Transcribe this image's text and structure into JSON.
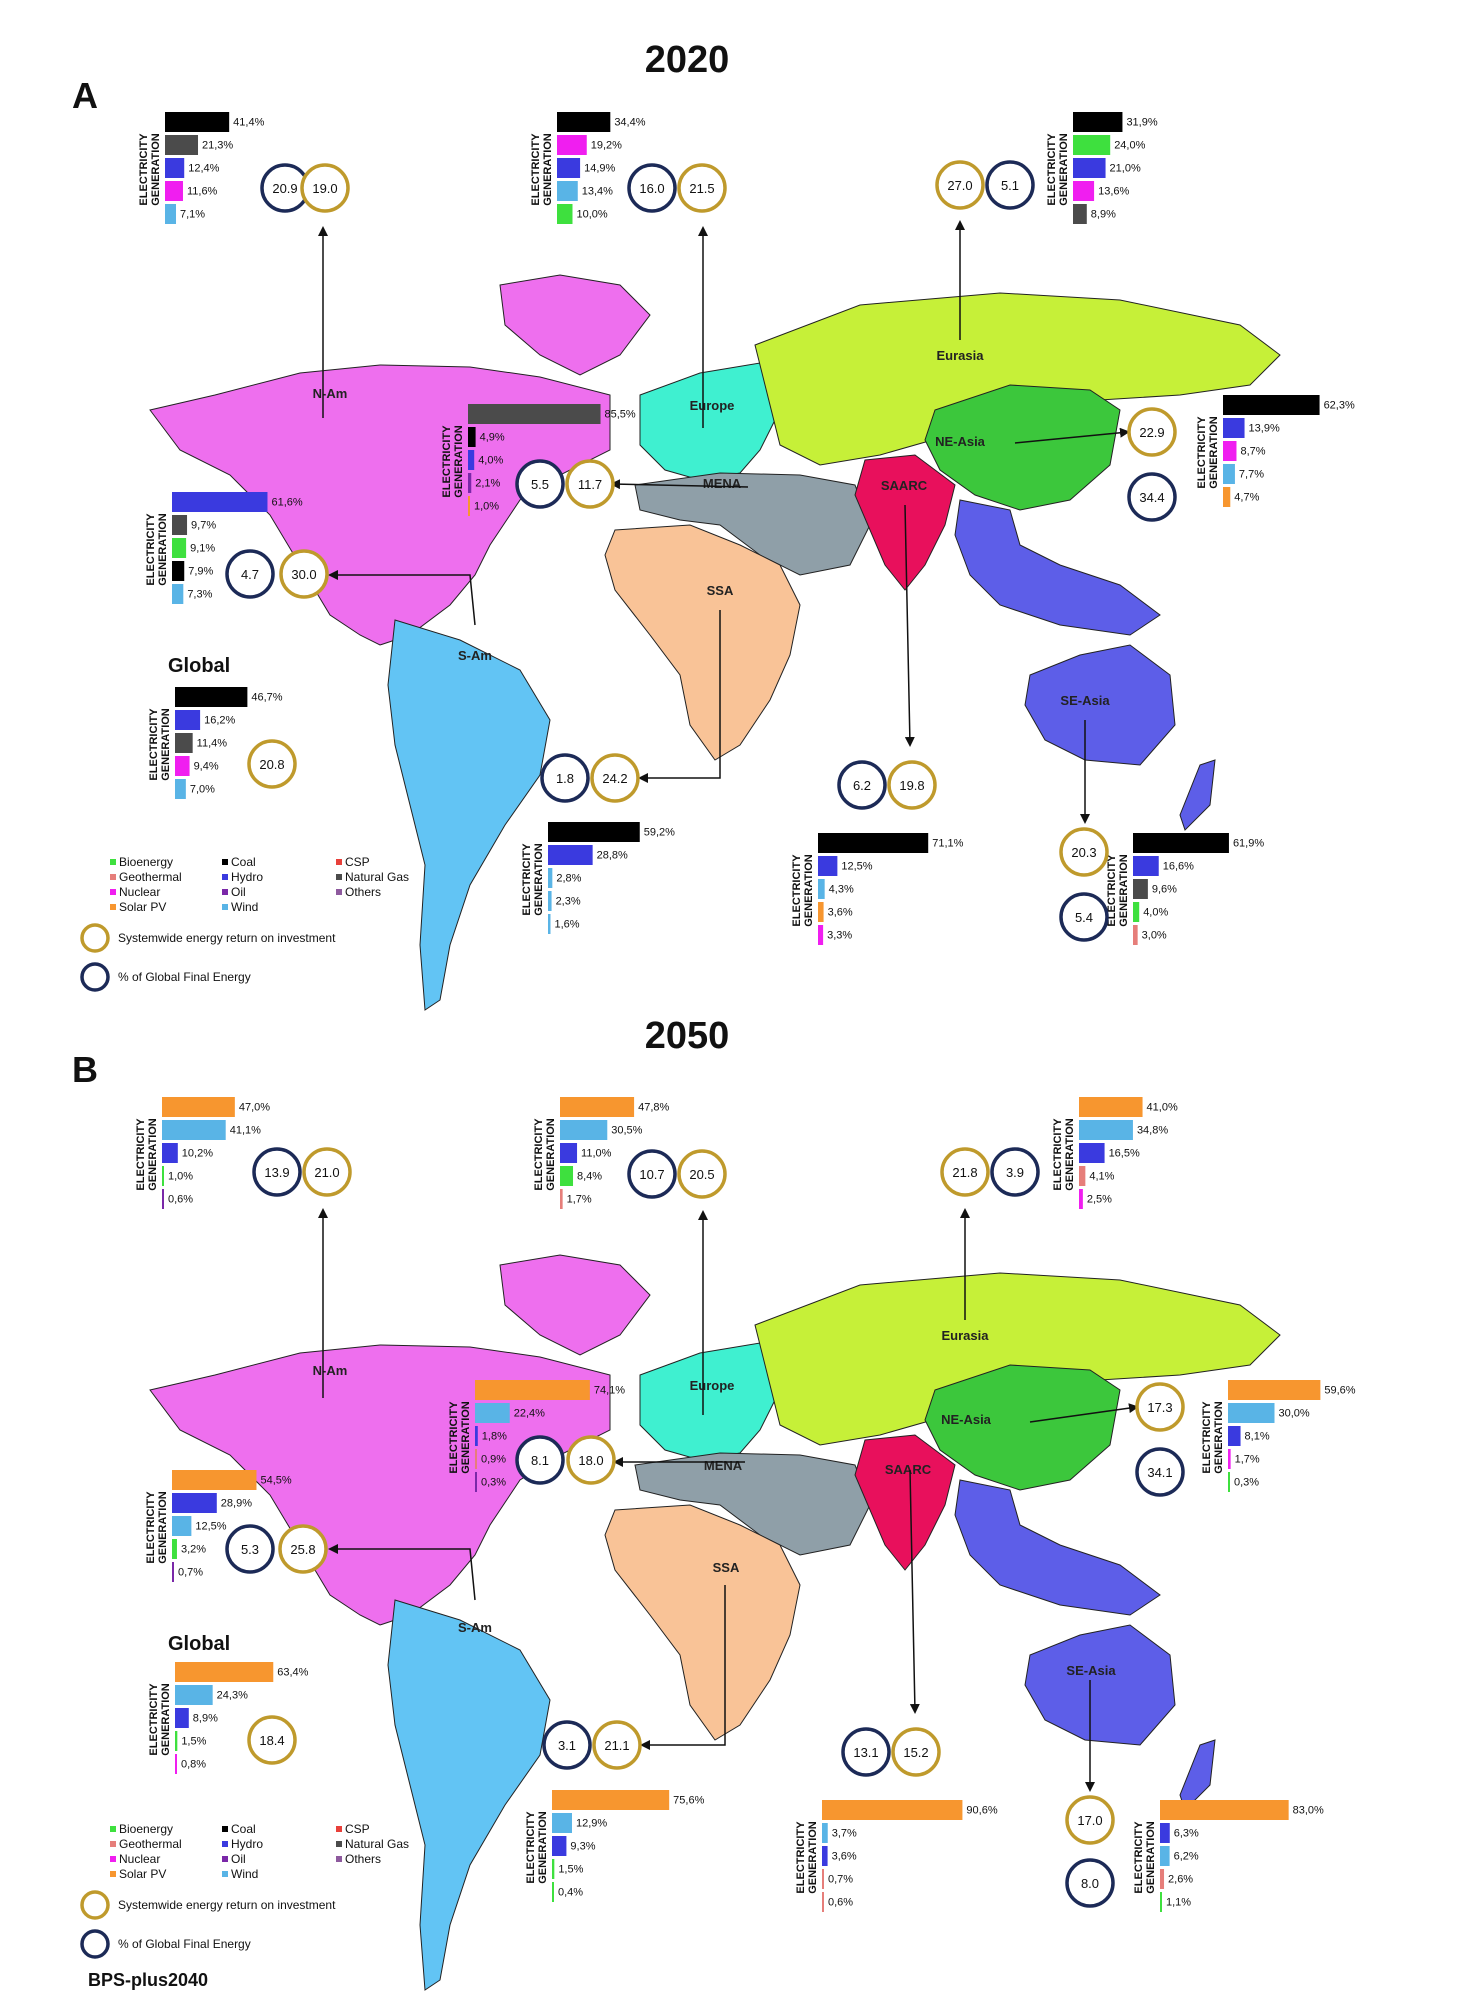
{
  "panels": [
    {
      "key": "A",
      "letter": "A",
      "year": "2020",
      "regions": [
        {
          "name": "N-Am",
          "label": "N-Am",
          "eroi": "19.0",
          "share": "20.9",
          "bars": [
            {
              "source": "Coal",
              "label": "41,4%",
              "value": 41.4
            },
            {
              "source": "Natural Gas",
              "label": "21,3%",
              "value": 21.3
            },
            {
              "source": "Hydro",
              "label": "12,4%",
              "value": 12.4
            },
            {
              "source": "Nuclear",
              "label": "11,6%",
              "value": 11.6
            },
            {
              "source": "Wind",
              "label": "7,1%",
              "value": 7.1
            }
          ]
        },
        {
          "name": "Europe",
          "label": "Europe",
          "eroi": "21.5",
          "share": "16.0",
          "bars": [
            {
              "source": "Coal",
              "label": "34,4%",
              "value": 34.4
            },
            {
              "source": "Nuclear",
              "label": "19,2%",
              "value": 19.2
            },
            {
              "source": "Hydro",
              "label": "14,9%",
              "value": 14.9
            },
            {
              "source": "Wind",
              "label": "13,4%",
              "value": 13.4
            },
            {
              "source": "Bioenergy",
              "label": "10,0%",
              "value": 10.0
            }
          ]
        },
        {
          "name": "Eurasia",
          "label": "Eurasia",
          "eroi": "27.0",
          "share": "5.1",
          "bars": [
            {
              "source": "Coal",
              "label": "31,9%",
              "value": 31.9
            },
            {
              "source": "Bioenergy",
              "label": "24,0%",
              "value": 24.0
            },
            {
              "source": "Hydro",
              "label": "21,0%",
              "value": 21.0
            },
            {
              "source": "Nuclear",
              "label": "13,6%",
              "value": 13.6
            },
            {
              "source": "Natural Gas",
              "label": "8,9%",
              "value": 8.9
            }
          ]
        },
        {
          "name": "NE-Asia",
          "label": "NE-Asia",
          "eroi": "22.9",
          "share": "34.4",
          "bars": [
            {
              "source": "Coal",
              "label": "62,3%",
              "value": 62.3
            },
            {
              "source": "Hydro",
              "label": "13,9%",
              "value": 13.9
            },
            {
              "source": "Nuclear",
              "label": "8,7%",
              "value": 8.7
            },
            {
              "source": "Wind",
              "label": "7,7%",
              "value": 7.7
            },
            {
              "source": "Solar PV",
              "label": "4,7%",
              "value": 4.7
            }
          ]
        },
        {
          "name": "MENA",
          "label": "MENA",
          "eroi": "11.7",
          "share": "5.5",
          "bars": [
            {
              "source": "Natural Gas",
              "label": "85,5%",
              "value": 85.5
            },
            {
              "source": "Coal",
              "label": "4,9%",
              "value": 4.9
            },
            {
              "source": "Hydro",
              "label": "4,0%",
              "value": 4.0
            },
            {
              "source": "Oil",
              "label": "2,1%",
              "value": 2.1
            },
            {
              "source": "Solar PV",
              "label": "1,0%",
              "value": 1.0
            }
          ]
        },
        {
          "name": "S-Am",
          "label": "S-Am",
          "eroi": "30.0",
          "share": "4.7",
          "bars": [
            {
              "source": "Hydro",
              "label": "61,6%",
              "value": 61.6
            },
            {
              "source": "Natural Gas",
              "label": "9,7%",
              "value": 9.7
            },
            {
              "source": "Bioenergy",
              "label": "9,1%",
              "value": 9.1
            },
            {
              "source": "Coal",
              "label": "7,9%",
              "value": 7.9
            },
            {
              "source": "Wind",
              "label": "7,3%",
              "value": 7.3
            }
          ]
        },
        {
          "name": "Global",
          "label": "Global",
          "eroi": "20.8",
          "share": "",
          "bars": [
            {
              "source": "Coal",
              "label": "46,7%",
              "value": 46.7
            },
            {
              "source": "Hydro",
              "label": "16,2%",
              "value": 16.2
            },
            {
              "source": "Natural Gas",
              "label": "11,4%",
              "value": 11.4
            },
            {
              "source": "Nuclear",
              "label": "9,4%",
              "value": 9.4
            },
            {
              "source": "Wind",
              "label": "7,0%",
              "value": 7.0
            }
          ]
        },
        {
          "name": "SSA",
          "label": "SSA",
          "eroi": "24.2",
          "share": "1.8",
          "bars": [
            {
              "source": "Coal",
              "label": "59,2%",
              "value": 59.2
            },
            {
              "source": "Hydro",
              "label": "28,8%",
              "value": 28.8
            },
            {
              "source": "Wind",
              "label": "2,8%",
              "value": 2.8
            },
            {
              "source": "Wind",
              "label": "2,3%",
              "value": 2.3
            },
            {
              "source": "Wind",
              "label": "1,6%",
              "value": 1.6
            }
          ]
        },
        {
          "name": "SAARC",
          "label": "SAARC",
          "eroi": "19.8",
          "share": "6.2",
          "bars": [
            {
              "source": "Coal",
              "label": "71,1%",
              "value": 71.1
            },
            {
              "source": "Hydro",
              "label": "12,5%",
              "value": 12.5
            },
            {
              "source": "Wind",
              "label": "4,3%",
              "value": 4.3
            },
            {
              "source": "Solar PV",
              "label": "3,6%",
              "value": 3.6
            },
            {
              "source": "Nuclear",
              "label": "3,3%",
              "value": 3.3
            }
          ]
        },
        {
          "name": "SE-Asia",
          "label": "SE-Asia",
          "eroi": "20.3",
          "share": "5.4",
          "bars": [
            {
              "source": "Coal",
              "label": "61,9%",
              "value": 61.9
            },
            {
              "source": "Hydro",
              "label": "16,6%",
              "value": 16.6
            },
            {
              "source": "Natural Gas",
              "label": "9,6%",
              "value": 9.6
            },
            {
              "source": "Bioenergy",
              "label": "4,0%",
              "value": 4.0
            },
            {
              "source": "Geothermal",
              "label": "3,0%",
              "value": 3.0
            }
          ]
        }
      ]
    },
    {
      "key": "B",
      "letter": "B",
      "year": "2050",
      "regions": [
        {
          "name": "N-Am",
          "label": "N-Am",
          "eroi": "21.0",
          "share": "13.9",
          "bars": [
            {
              "source": "Solar PV",
              "label": "47,0%",
              "value": 47.0
            },
            {
              "source": "Wind",
              "label": "41,1%",
              "value": 41.1
            },
            {
              "source": "Hydro",
              "label": "10,2%",
              "value": 10.2
            },
            {
              "source": "Bioenergy",
              "label": "1,0%",
              "value": 1.0
            },
            {
              "source": "Oil",
              "label": "0,6%",
              "value": 0.6
            }
          ]
        },
        {
          "name": "Europe",
          "label": "Europe",
          "eroi": "20.5",
          "share": "10.7",
          "bars": [
            {
              "source": "Solar PV",
              "label": "47,8%",
              "value": 47.8
            },
            {
              "source": "Wind",
              "label": "30,5%",
              "value": 30.5
            },
            {
              "source": "Hydro",
              "label": "11,0%",
              "value": 11.0
            },
            {
              "source": "Bioenergy",
              "label": "8,4%",
              "value": 8.4
            },
            {
              "source": "Geothermal",
              "label": "1,7%",
              "value": 1.7
            }
          ]
        },
        {
          "name": "Eurasia",
          "label": "Eurasia",
          "eroi": "21.8",
          "share": "3.9",
          "bars": [
            {
              "source": "Solar PV",
              "label": "41,0%",
              "value": 41.0
            },
            {
              "source": "Wind",
              "label": "34,8%",
              "value": 34.8
            },
            {
              "source": "Hydro",
              "label": "16,5%",
              "value": 16.5
            },
            {
              "source": "Geothermal",
              "label": "4,1%",
              "value": 4.1
            },
            {
              "source": "Nuclear",
              "label": "2,5%",
              "value": 2.5
            }
          ]
        },
        {
          "name": "NE-Asia",
          "label": "NE-Asia",
          "eroi": "17.3",
          "share": "34.1",
          "bars": [
            {
              "source": "Solar PV",
              "label": "59,6%",
              "value": 59.6
            },
            {
              "source": "Wind",
              "label": "30,0%",
              "value": 30.0
            },
            {
              "source": "Hydro",
              "label": "8,1%",
              "value": 8.1
            },
            {
              "source": "Nuclear",
              "label": "1,7%",
              "value": 1.7
            },
            {
              "source": "Bioenergy",
              "label": "0,3%",
              "value": 0.3
            }
          ]
        },
        {
          "name": "MENA",
          "label": "MENA",
          "eroi": "18.0",
          "share": "8.1",
          "bars": [
            {
              "source": "Solar PV",
              "label": "74,1%",
              "value": 74.1
            },
            {
              "source": "Wind",
              "label": "22,4%",
              "value": 22.4
            },
            {
              "source": "Hydro",
              "label": "1,8%",
              "value": 1.8
            },
            {
              "source": "Geothermal",
              "label": "0,9%",
              "value": 0.9
            },
            {
              "source": "Oil",
              "label": "0,3%",
              "value": 0.3
            }
          ]
        },
        {
          "name": "S-Am",
          "label": "S-Am",
          "eroi": "25.8",
          "share": "5.3",
          "bars": [
            {
              "source": "Solar PV",
              "label": "54,5%",
              "value": 54.5
            },
            {
              "source": "Hydro",
              "label": "28,9%",
              "value": 28.9
            },
            {
              "source": "Wind",
              "label": "12,5%",
              "value": 12.5
            },
            {
              "source": "Bioenergy",
              "label": "3,2%",
              "value": 3.2
            },
            {
              "source": "Oil",
              "label": "0,7%",
              "value": 0.7
            }
          ]
        },
        {
          "name": "Global",
          "label": "Global",
          "eroi": "18.4",
          "share": "",
          "bars": [
            {
              "source": "Solar PV",
              "label": "63,4%",
              "value": 63.4
            },
            {
              "source": "Wind",
              "label": "24,3%",
              "value": 24.3
            },
            {
              "source": "Hydro",
              "label": "8,9%",
              "value": 8.9
            },
            {
              "source": "Bioenergy",
              "label": "1,5%",
              "value": 1.5
            },
            {
              "source": "Nuclear",
              "label": "0,8%",
              "value": 0.8
            }
          ]
        },
        {
          "name": "SSA",
          "label": "SSA",
          "eroi": "21.1",
          "share": "3.1",
          "bars": [
            {
              "source": "Solar PV",
              "label": "75,6%",
              "value": 75.6
            },
            {
              "source": "Wind",
              "label": "12,9%",
              "value": 12.9
            },
            {
              "source": "Hydro",
              "label": "9,3%",
              "value": 9.3
            },
            {
              "source": "Bioenergy",
              "label": "1,5%",
              "value": 1.5
            },
            {
              "source": "Bioenergy",
              "label": "0,4%",
              "value": 0.4
            }
          ]
        },
        {
          "name": "SAARC",
          "label": "SAARC",
          "eroi": "15.2",
          "share": "13.1",
          "bars": [
            {
              "source": "Solar PV",
              "label": "90,6%",
              "value": 90.6
            },
            {
              "source": "Wind",
              "label": "3,7%",
              "value": 3.7
            },
            {
              "source": "Hydro",
              "label": "3,6%",
              "value": 3.6
            },
            {
              "source": "Geothermal",
              "label": "0,7%",
              "value": 0.7
            },
            {
              "source": "Geothermal",
              "label": "0,6%",
              "value": 0.6
            }
          ]
        },
        {
          "name": "SE-Asia",
          "label": "SE-Asia",
          "eroi": "17.0",
          "share": "8.0",
          "bars": [
            {
              "source": "Solar PV",
              "label": "83,0%",
              "value": 83.0
            },
            {
              "source": "Hydro",
              "label": "6,3%",
              "value": 6.3
            },
            {
              "source": "Wind",
              "label": "6,2%",
              "value": 6.2
            },
            {
              "source": "Geothermal",
              "label": "2,6%",
              "value": 2.6
            },
            {
              "source": "Bioenergy",
              "label": "1,1%",
              "value": 1.1
            }
          ]
        }
      ]
    }
  ],
  "axis_label_line1": "ELECTRICITY",
  "axis_label_line2": "GENERATION",
  "legend": {
    "sources": [
      {
        "name": "Bioenergy",
        "color": "#3ee03e"
      },
      {
        "name": "Coal",
        "color": "#000000"
      },
      {
        "name": "CSP",
        "color": "#e8403a"
      },
      {
        "name": "Geothermal",
        "color": "#e67e7a"
      },
      {
        "name": "Hydro",
        "color": "#3a3adf"
      },
      {
        "name": "Natural Gas",
        "color": "#4b4b4b"
      },
      {
        "name": "Nuclear",
        "color": "#f01ef0"
      },
      {
        "name": "Oil",
        "color": "#7a28a8"
      },
      {
        "name": "Others",
        "color": "#8e5a9e"
      },
      {
        "name": "Solar PV",
        "color": "#f7962f"
      },
      {
        "name": "Wind",
        "color": "#59b4e6"
      }
    ],
    "eroi_label": "Systemwide energy return on investment",
    "share_label": "% of Global Final Energy"
  },
  "colors": {
    "eroi_ring": "#bf9a2c",
    "share_ring": "#1c2a57",
    "N-Am": "#ee6fee",
    "Europe": "#3ff0d0",
    "Eurasia": "#c6f038",
    "NE-Asia": "#3cc73c",
    "MENA": "#8f9fa8",
    "SAARC": "#e8105c",
    "SSA": "#f9c397",
    "S-Am": "#62c4f4",
    "SE-Asia": "#5d5ee8"
  },
  "footer": "BPS-plus2040"
}
